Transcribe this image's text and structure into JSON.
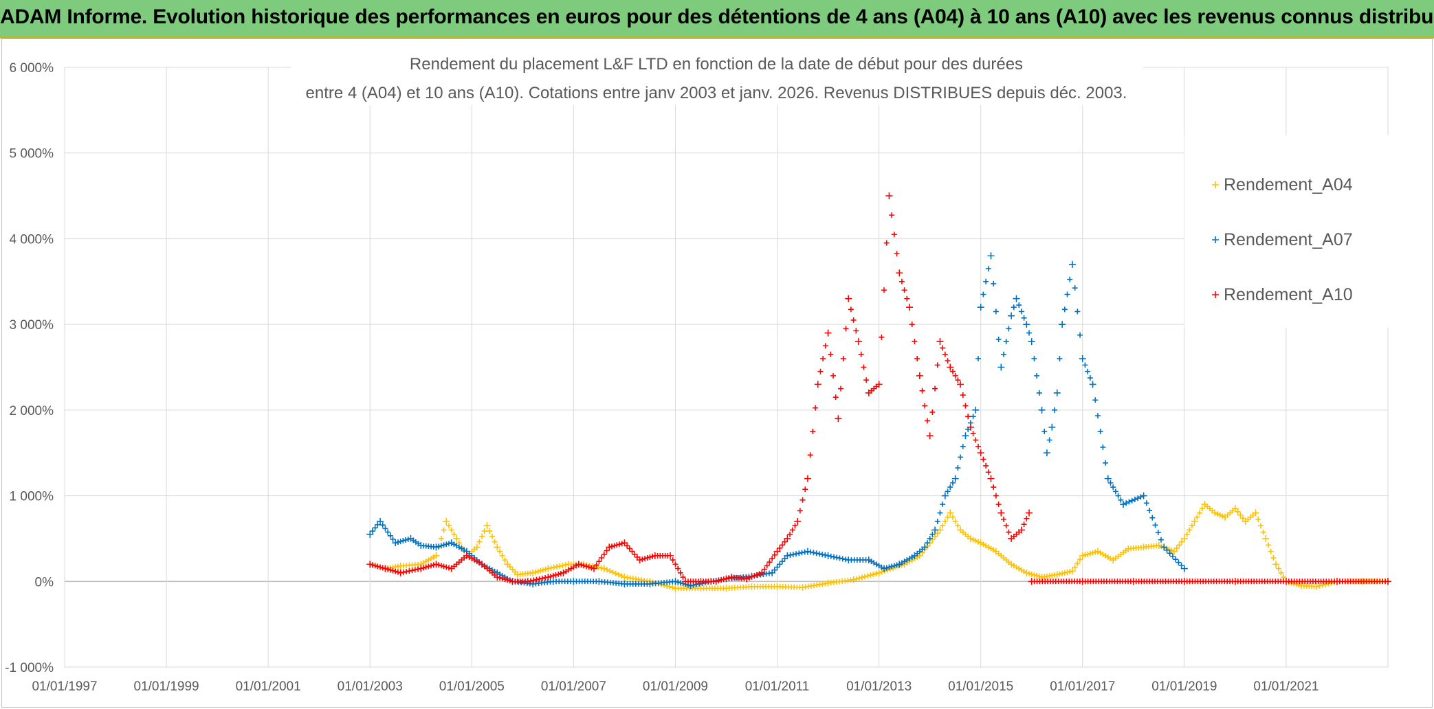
{
  "header": {
    "banner_title": "ADAM Informe. Evolution historique des performances en euros pour des détentions de 4 ans (A04) à 10 ans (A10) avec les revenus connus distribués"
  },
  "chart_data": {
    "type": "scatter",
    "title_line1": "Rendement du placement L&F LTD en fonction de la date de début pour des durées",
    "title_line2": "entre 4 (A04) et 10 ans (A10). Cotations entre janv 2003 et janv. 2026. Revenus DISTRIBUES depuis déc. 2003.",
    "xlabel": "",
    "ylabel": "",
    "x_range": [
      1997.0,
      2023.0
    ],
    "ylim": [
      -1000,
      6000
    ],
    "y_ticks": [
      -1000,
      0,
      1000,
      2000,
      3000,
      4000,
      5000,
      6000
    ],
    "y_tick_labels": [
      "-1 000%",
      "0%",
      "1 000%",
      "2 000%",
      "3 000%",
      "4 000%",
      "5 000%",
      "6 000%"
    ],
    "x_ticks": [
      1997,
      1999,
      2001,
      2003,
      2005,
      2007,
      2009,
      2011,
      2013,
      2015,
      2017,
      2019,
      2021
    ],
    "x_tick_labels": [
      "01/01/1997",
      "01/01/1999",
      "01/01/2001",
      "01/01/2003",
      "01/01/2005",
      "01/01/2007",
      "01/01/2009",
      "01/01/2011",
      "01/01/2013",
      "01/01/2015",
      "01/01/2017",
      "01/01/2019",
      "01/01/2021"
    ],
    "grid": true,
    "legend_position": "top-right",
    "marker": "+",
    "series": [
      {
        "name": "Rendement_A04",
        "color": "#ffc000",
        "x": [
          2003.0,
          2003.3,
          2003.6,
          2004.0,
          2004.3,
          2004.5,
          2004.7,
          2004.9,
          2005.1,
          2005.3,
          2005.5,
          2005.7,
          2005.9,
          2006.2,
          2006.5,
          2006.9,
          2007.2,
          2007.6,
          2008.0,
          2008.5,
          2009.0,
          2009.5,
          2010.0,
          2010.5,
          2011.0,
          2011.5,
          2012.0,
          2012.5,
          2013.0,
          2013.5,
          2013.8,
          2014.0,
          2014.2,
          2014.4,
          2014.6,
          2014.8,
          2015.0,
          2015.3,
          2015.6,
          2015.9,
          2016.2,
          2016.5,
          2016.8,
          2017.0,
          2017.3,
          2017.6,
          2017.9,
          2018.2,
          2018.5,
          2018.8,
          2019.0,
          2019.2,
          2019.4,
          2019.6,
          2019.8,
          2020.0,
          2020.2,
          2020.4,
          2020.6,
          2020.8,
          2021.0,
          2021.3,
          2021.6,
          2022.0,
          2022.5,
          2023.0
        ],
        "values": [
          200,
          150,
          180,
          200,
          300,
          700,
          500,
          300,
          400,
          650,
          400,
          200,
          80,
          100,
          150,
          200,
          200,
          150,
          50,
          0,
          -80,
          -80,
          -80,
          -60,
          -60,
          -70,
          -20,
          20,
          100,
          200,
          300,
          450,
          600,
          800,
          600,
          500,
          450,
          350,
          200,
          100,
          50,
          80,
          120,
          300,
          350,
          250,
          380,
          400,
          420,
          350,
          500,
          700,
          900,
          800,
          750,
          850,
          700,
          800,
          500,
          200,
          0,
          -50,
          -60,
          0,
          0,
          0
        ]
      },
      {
        "name": "Rendement_A07",
        "color": "#0070c0",
        "x": [
          2003.0,
          2003.2,
          2003.5,
          2003.8,
          2004.0,
          2004.3,
          2004.6,
          2004.9,
          2005.2,
          2005.5,
          2005.8,
          2006.2,
          2006.6,
          2007.0,
          2007.5,
          2008.0,
          2008.5,
          2009.0,
          2009.3,
          2009.7,
          2010.0,
          2010.5,
          2010.9,
          2011.2,
          2011.6,
          2012.0,
          2012.4,
          2012.8,
          2013.1,
          2013.4,
          2013.7,
          2013.9,
          2014.1,
          2014.3,
          2014.5,
          2014.7,
          2014.9,
          2015.0,
          2015.2,
          2015.4,
          2015.6,
          2015.7,
          2015.9,
          2016.0,
          2016.2,
          2016.3,
          2016.4,
          2016.5,
          2016.6,
          2016.8,
          2017.0,
          2017.2,
          2017.5,
          2017.8,
          2018.2,
          2018.6,
          2019.0
        ],
        "values": [
          550,
          700,
          450,
          500,
          420,
          400,
          450,
          350,
          200,
          100,
          0,
          -30,
          0,
          0,
          0,
          -30,
          -30,
          0,
          -50,
          0,
          30,
          60,
          100,
          300,
          350,
          300,
          250,
          250,
          150,
          200,
          300,
          400,
          600,
          1000,
          1200,
          1700,
          2000,
          3200,
          3800,
          2500,
          3100,
          3300,
          3000,
          2800,
          2000,
          1500,
          1800,
          2200,
          3000,
          3700,
          2600,
          2300,
          1200,
          900,
          1000,
          400,
          150
        ]
      },
      {
        "name": "Rendement_A10",
        "color": "#ff0000",
        "x": [
          2003.0,
          2003.3,
          2003.6,
          2004.0,
          2004.3,
          2004.6,
          2004.9,
          2005.2,
          2005.5,
          2005.8,
          2006.1,
          2006.5,
          2006.8,
          2007.1,
          2007.4,
          2007.7,
          2008.0,
          2008.3,
          2008.6,
          2008.9,
          2009.2,
          2009.5,
          2009.8,
          2010.1,
          2010.4,
          2010.7,
          2011.0,
          2011.2,
          2011.4,
          2011.6,
          2011.8,
          2012.0,
          2012.2,
          2012.4,
          2012.6,
          2012.8,
          2013.0,
          2013.2,
          2013.4,
          2013.6,
          2013.8,
          2014.0,
          2014.2,
          2014.4,
          2014.6,
          2014.8,
          2015.0,
          2015.2,
          2015.4,
          2015.6,
          2015.8,
          2015.95,
          2016.0,
          2017.0,
          2018.0,
          2019.0,
          2020.0,
          2021.0,
          2022.0,
          2023.0
        ],
        "values": [
          200,
          150,
          100,
          150,
          200,
          150,
          300,
          200,
          50,
          0,
          0,
          50,
          100,
          200,
          150,
          400,
          450,
          250,
          300,
          300,
          0,
          0,
          0,
          50,
          30,
          100,
          350,
          500,
          700,
          1200,
          2300,
          2900,
          1900,
          3300,
          2800,
          2200,
          2300,
          4500,
          3600,
          3200,
          2400,
          1700,
          2800,
          2500,
          2300,
          1800,
          1500,
          1200,
          800,
          500,
          600,
          800,
          0,
          0,
          0,
          0,
          0,
          0,
          0,
          0
        ]
      }
    ]
  }
}
